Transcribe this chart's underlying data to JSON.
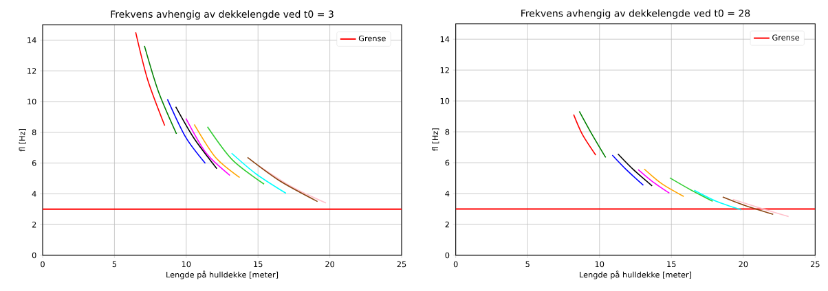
{
  "chart_data": [
    {
      "type": "line",
      "title": "Frekvens avhengig av dekkelengde ved t0 = 3",
      "xlabel": "Lengde på hulldekke [meter]",
      "ylabel": "fl [Hz]",
      "xlim": [
        0,
        25
      ],
      "ylim": [
        0,
        15
      ],
      "xticks": [
        0,
        5,
        10,
        15,
        20,
        25
      ],
      "yticks": [
        0,
        2,
        4,
        6,
        8,
        10,
        12,
        14
      ],
      "grid": true,
      "legend": "top right",
      "ref_lines": [
        {
          "axis": "y",
          "value": 3,
          "label": "Grense",
          "color": "#ff0000"
        }
      ],
      "series": [
        {
          "color": "#ff0000",
          "x": [
            6.48,
            7.31,
            8.5
          ],
          "values": [
            14.5,
            11.43,
            8.44
          ]
        },
        {
          "color": "#008000",
          "x": [
            7.09,
            8.06,
            9.32
          ],
          "values": [
            13.62,
            10.66,
            7.9
          ]
        },
        {
          "color": "#0000ff",
          "x": [
            8.69,
            9.97,
            11.33
          ],
          "values": [
            10.15,
            7.67,
            5.98
          ]
        },
        {
          "color": "#000000",
          "x": [
            9.27,
            10.55,
            12.13
          ],
          "values": [
            9.66,
            7.6,
            5.64
          ]
        },
        {
          "color": "#ff00ff",
          "x": [
            9.98,
            11.38,
            13.04
          ],
          "values": [
            8.9,
            6.66,
            5.2
          ]
        },
        {
          "color": "#ffa500",
          "x": [
            10.56,
            12.04,
            13.72
          ],
          "values": [
            8.51,
            6.37,
            5.06
          ]
        },
        {
          "color": "#32cd32",
          "x": [
            11.48,
            13.21,
            15.42
          ],
          "values": [
            8.36,
            6.21,
            4.63
          ]
        },
        {
          "color": "#00ffff",
          "x": [
            13.16,
            14.87,
            16.94
          ],
          "values": [
            6.64,
            5.29,
            4.04
          ]
        },
        {
          "color": "#ffc0cb",
          "x": [
            15.03,
            17.36,
            19.73
          ],
          "values": [
            5.83,
            4.45,
            3.4
          ]
        },
        {
          "color": "#8b4513",
          "x": [
            14.27,
            16.53,
            19.14
          ],
          "values": [
            6.37,
            4.83,
            3.5
          ]
        }
      ]
    },
    {
      "type": "line",
      "title": "Frekvens avhengig av dekkelengde ved t0 = 28",
      "xlabel": "Lengde på hulldekke [meter]",
      "ylabel": "fl [Hz]",
      "xlim": [
        0,
        25
      ],
      "ylim": [
        0,
        15
      ],
      "xticks": [
        0,
        5,
        10,
        15,
        20,
        25
      ],
      "yticks": [
        0,
        2,
        4,
        6,
        8,
        10,
        12,
        14
      ],
      "grid": true,
      "legend": "top right",
      "ref_lines": [
        {
          "axis": "y",
          "value": 3,
          "label": "Grense",
          "color": "#ff0000"
        }
      ],
      "series": [
        {
          "color": "#ff0000",
          "x": [
            8.2,
            8.81,
            9.74
          ],
          "values": [
            9.12,
            7.83,
            6.49
          ]
        },
        {
          "color": "#008000",
          "x": [
            8.6,
            9.39,
            10.43
          ],
          "values": [
            9.32,
            7.98,
            6.34
          ]
        },
        {
          "color": "#0000ff",
          "x": [
            10.89,
            11.86,
            13.05
          ],
          "values": [
            6.49,
            5.55,
            4.54
          ]
        },
        {
          "color": "#000000",
          "x": [
            11.28,
            12.36,
            13.66
          ],
          "values": [
            6.57,
            5.55,
            4.5
          ]
        },
        {
          "color": "#ff00ff",
          "x": [
            12.69,
            13.67,
            14.86
          ],
          "values": [
            5.55,
            4.79,
            4.03
          ]
        },
        {
          "color": "#ffa500",
          "x": [
            13.11,
            14.33,
            15.86
          ],
          "values": [
            5.59,
            4.64,
            3.81
          ]
        },
        {
          "color": "#32cd32",
          "x": [
            14.89,
            16.31,
            17.87
          ],
          "values": [
            5.02,
            4.26,
            3.5
          ]
        },
        {
          "color": "#00ffff",
          "x": [
            16.59,
            18.12,
            19.85
          ],
          "values": [
            4.21,
            3.5,
            2.95
          ]
        },
        {
          "color": "#ffc0cb",
          "x": [
            19.28,
            21.25,
            23.15
          ],
          "values": [
            3.62,
            3.04,
            2.51
          ]
        },
        {
          "color": "#8b4513",
          "x": [
            18.57,
            20.23,
            22.08
          ],
          "values": [
            3.78,
            3.19,
            2.66
          ]
        }
      ]
    }
  ]
}
